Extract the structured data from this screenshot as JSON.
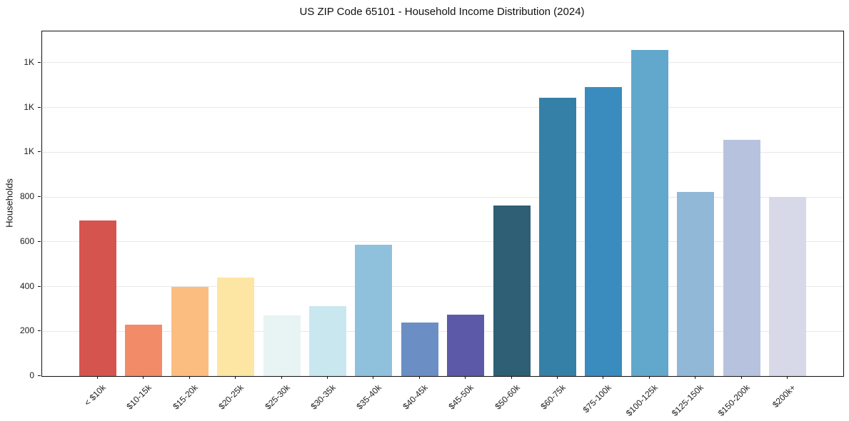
{
  "figure": {
    "background": "#ffffff",
    "text_color": "#1c1c1c",
    "spine_color": "#111111",
    "gridline_color": "#e8e8e8"
  },
  "chart_data": {
    "type": "bar",
    "title": "US ZIP Code 65101 - Household Income Distribution (2024)",
    "xlabel": "",
    "ylabel": "Households",
    "categories": [
      "< $10k",
      "$10-15k",
      "$15-20k",
      "$20-25k",
      "$25-30k",
      "$30-35k",
      "$35-40k",
      "$40-45k",
      "$45-50k",
      "$50-60k",
      "$60-75k",
      "$75-100k",
      "$100-125k",
      "$125-150k",
      "$150-200k",
      "$200k+"
    ],
    "values": [
      695,
      230,
      398,
      440,
      270,
      311,
      588,
      239,
      274,
      762,
      1245,
      1290,
      1458,
      822,
      1056,
      800
    ],
    "bar_colors": [
      "#d6544e",
      "#f28b68",
      "#fcbd80",
      "#fde6a3",
      "#e8f3f3",
      "#c9e7ef",
      "#8fc1dd",
      "#6b8fc4",
      "#5c59a8",
      "#2f5f75",
      "#3580a6",
      "#3a8cbf",
      "#62a8cc",
      "#92b8d8",
      "#b7c3de",
      "#d8d9e8"
    ],
    "ylim": [
      0,
      1540
    ],
    "yticks": [
      {
        "value": 0,
        "label": "0"
      },
      {
        "value": 200,
        "label": "200"
      },
      {
        "value": 400,
        "label": "400"
      },
      {
        "value": 600,
        "label": "600"
      },
      {
        "value": 800,
        "label": "800"
      },
      {
        "value": 1000,
        "label": "1K"
      },
      {
        "value": 1200,
        "label": "1K"
      },
      {
        "value": 1400,
        "label": "1K"
      }
    ],
    "grid": "horizontal",
    "legend": "none",
    "x_tick_rotation_deg": 45
  }
}
